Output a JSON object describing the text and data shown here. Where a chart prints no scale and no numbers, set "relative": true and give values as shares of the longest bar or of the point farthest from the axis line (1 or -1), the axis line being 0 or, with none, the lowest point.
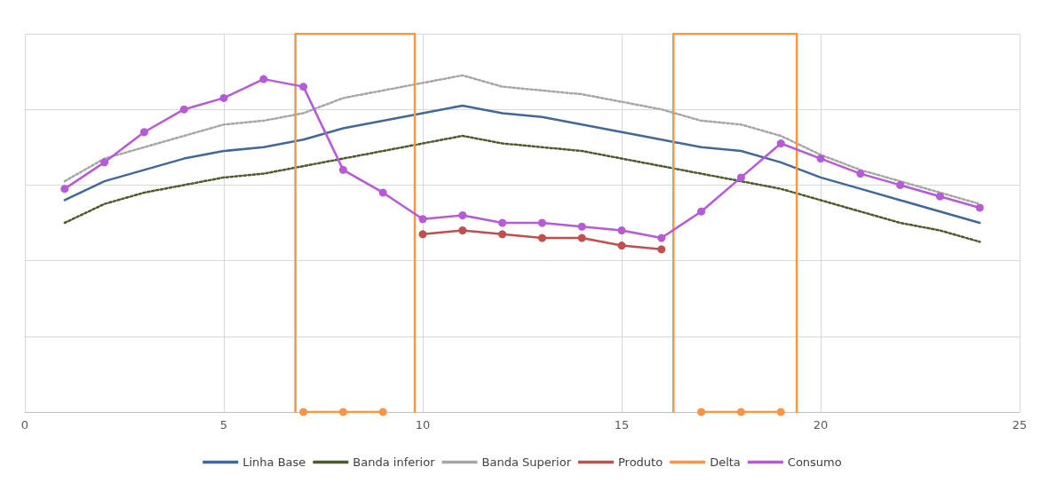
{
  "chart_data": {
    "type": "line",
    "relative": true,
    "xlim": [
      0,
      25
    ],
    "xticks": [
      0,
      5,
      10,
      15,
      20,
      25
    ],
    "grid": true,
    "legend": "bottom",
    "series": [
      {
        "name": "Linha Base",
        "color": "#44679a",
        "marker": "none",
        "line_style": "solid",
        "x": [
          1,
          2,
          3,
          4,
          5,
          6,
          7,
          8,
          9,
          10,
          11,
          12,
          13,
          14,
          15,
          16,
          17,
          18,
          19,
          20,
          21,
          22,
          23,
          24
        ],
        "values": [
          0.56,
          0.61,
          0.64,
          0.67,
          0.69,
          0.7,
          0.72,
          0.75,
          0.77,
          0.79,
          0.81,
          0.79,
          0.78,
          0.76,
          0.74,
          0.72,
          0.7,
          0.69,
          0.66,
          0.62,
          0.59,
          0.56,
          0.53,
          0.5
        ]
      },
      {
        "name": "Banda inferior",
        "color": "#4d5a2e",
        "marker": "none",
        "line_style": "dotted",
        "x": [
          1,
          2,
          3,
          4,
          5,
          6,
          7,
          8,
          9,
          10,
          11,
          12,
          13,
          14,
          15,
          16,
          17,
          18,
          19,
          20,
          21,
          22,
          23,
          24
        ],
        "values": [
          0.5,
          0.55,
          0.58,
          0.6,
          0.62,
          0.63,
          0.65,
          0.67,
          0.69,
          0.71,
          0.73,
          0.71,
          0.7,
          0.69,
          0.67,
          0.65,
          0.63,
          0.61,
          0.59,
          0.56,
          0.53,
          0.5,
          0.48,
          0.45
        ]
      },
      {
        "name": "Banda Superior",
        "color": "#a6a6a6",
        "marker": "none",
        "line_style": "dotted",
        "x": [
          1,
          2,
          3,
          4,
          5,
          6,
          7,
          8,
          9,
          10,
          11,
          12,
          13,
          14,
          15,
          16,
          17,
          18,
          19,
          20,
          21,
          22,
          23,
          24
        ],
        "values": [
          0.61,
          0.67,
          0.7,
          0.73,
          0.76,
          0.77,
          0.79,
          0.83,
          0.85,
          0.87,
          0.89,
          0.86,
          0.85,
          0.84,
          0.82,
          0.8,
          0.77,
          0.76,
          0.73,
          0.68,
          0.64,
          0.61,
          0.58,
          0.55
        ]
      },
      {
        "name": "Produto",
        "color": "#c0504d",
        "marker": "circle",
        "line_style": "solid",
        "x": [
          10,
          11,
          12,
          13,
          14,
          15,
          16
        ],
        "values": [
          0.47,
          0.48,
          0.47,
          0.46,
          0.46,
          0.44,
          0.43
        ]
      },
      {
        "name": "Delta",
        "color": "#f79646",
        "marker": "none",
        "line_style": "solid",
        "x": [
          6.8,
          6.8,
          9.8,
          9.8
        ],
        "values": [
          0,
          1,
          1,
          0
        ]
      },
      {
        "color": "#f79646",
        "marker": "none",
        "line_style": "solid",
        "x": [
          16.3,
          16.3,
          19.4,
          19.4
        ],
        "values": [
          0,
          1,
          1,
          0
        ]
      },
      {
        "color": "#f79646",
        "marker": "circle",
        "line_style": "solid",
        "x": [
          7,
          8,
          9
        ],
        "values": [
          0,
          0,
          0
        ]
      },
      {
        "color": "#f79646",
        "marker": "circle",
        "line_style": "solid",
        "x": [
          17,
          18,
          19
        ],
        "values": [
          0,
          0,
          0
        ]
      },
      {
        "name": "Consumo",
        "color": "#b65ad8",
        "marker": "circle",
        "line_style": "solid",
        "x": [
          1,
          2,
          3,
          4,
          5,
          6,
          7,
          8,
          9,
          10,
          11,
          12,
          13,
          14,
          15,
          16,
          17,
          18,
          19,
          20,
          21,
          22,
          23,
          24
        ],
        "values": [
          0.59,
          0.66,
          0.74,
          0.8,
          0.83,
          0.88,
          0.86,
          0.64,
          0.58,
          0.51,
          0.52,
          0.5,
          0.5,
          0.49,
          0.48,
          0.46,
          0.53,
          0.62,
          0.71,
          0.67,
          0.63,
          0.6,
          0.57,
          0.54
        ]
      }
    ]
  }
}
